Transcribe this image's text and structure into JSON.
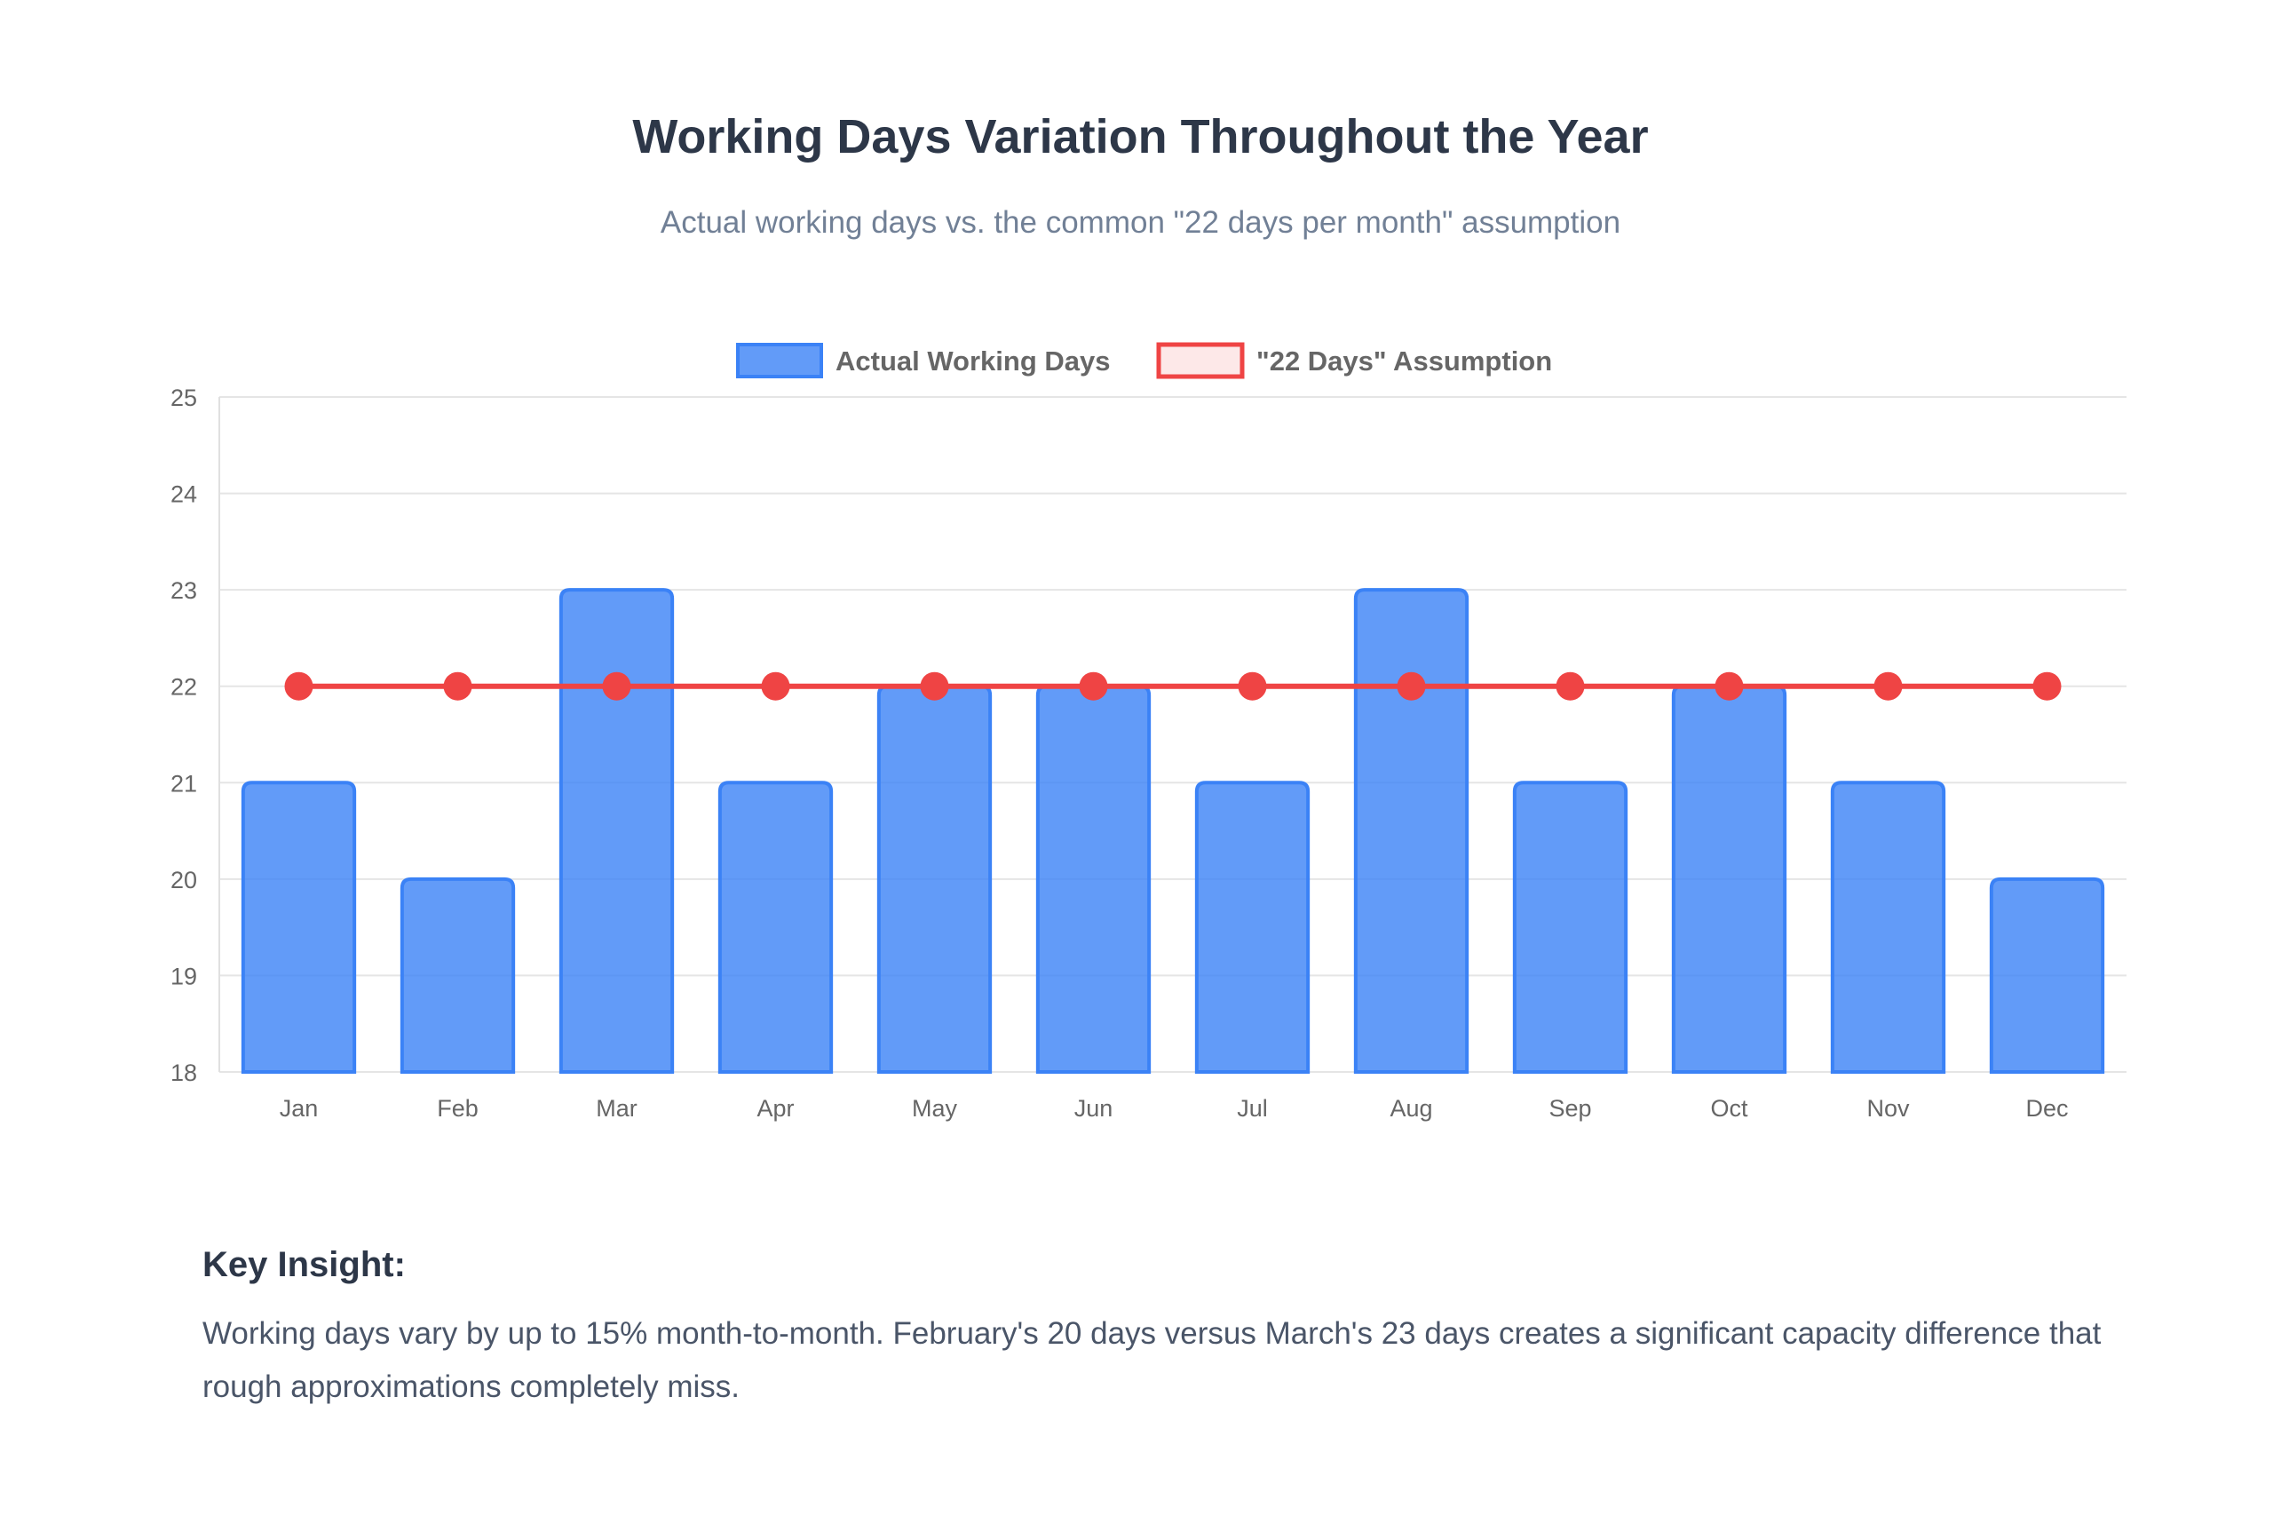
{
  "page": {
    "title": "Working Days Variation Throughout the Year",
    "subtitle": "Actual working days vs. the common \"22 days per month\" assumption"
  },
  "insight": {
    "heading": "Key Insight:",
    "text": "Working days vary by up to 15% month-to-month. February's 20 days versus March's 23 days creates a significant capacity difference that rough approximations completely miss."
  },
  "chart_data": {
    "type": "bar",
    "categories": [
      "Jan",
      "Feb",
      "Mar",
      "Apr",
      "May",
      "Jun",
      "Jul",
      "Aug",
      "Sep",
      "Oct",
      "Nov",
      "Dec"
    ],
    "series": [
      {
        "name": "Actual Working Days",
        "type": "bar",
        "values": [
          21,
          20,
          23,
          21,
          22,
          22,
          21,
          23,
          21,
          22,
          21,
          20
        ],
        "color": "#3b82f6"
      },
      {
        "name": "\"22 Days\" Assumption",
        "type": "line",
        "values": [
          22,
          22,
          22,
          22,
          22,
          22,
          22,
          22,
          22,
          22,
          22,
          22
        ],
        "color": "#ef4444"
      }
    ],
    "ylim": [
      18,
      25
    ],
    "yticks": [
      18,
      19,
      20,
      21,
      22,
      23,
      24,
      25
    ],
    "grid": true,
    "legend": "top-center"
  }
}
